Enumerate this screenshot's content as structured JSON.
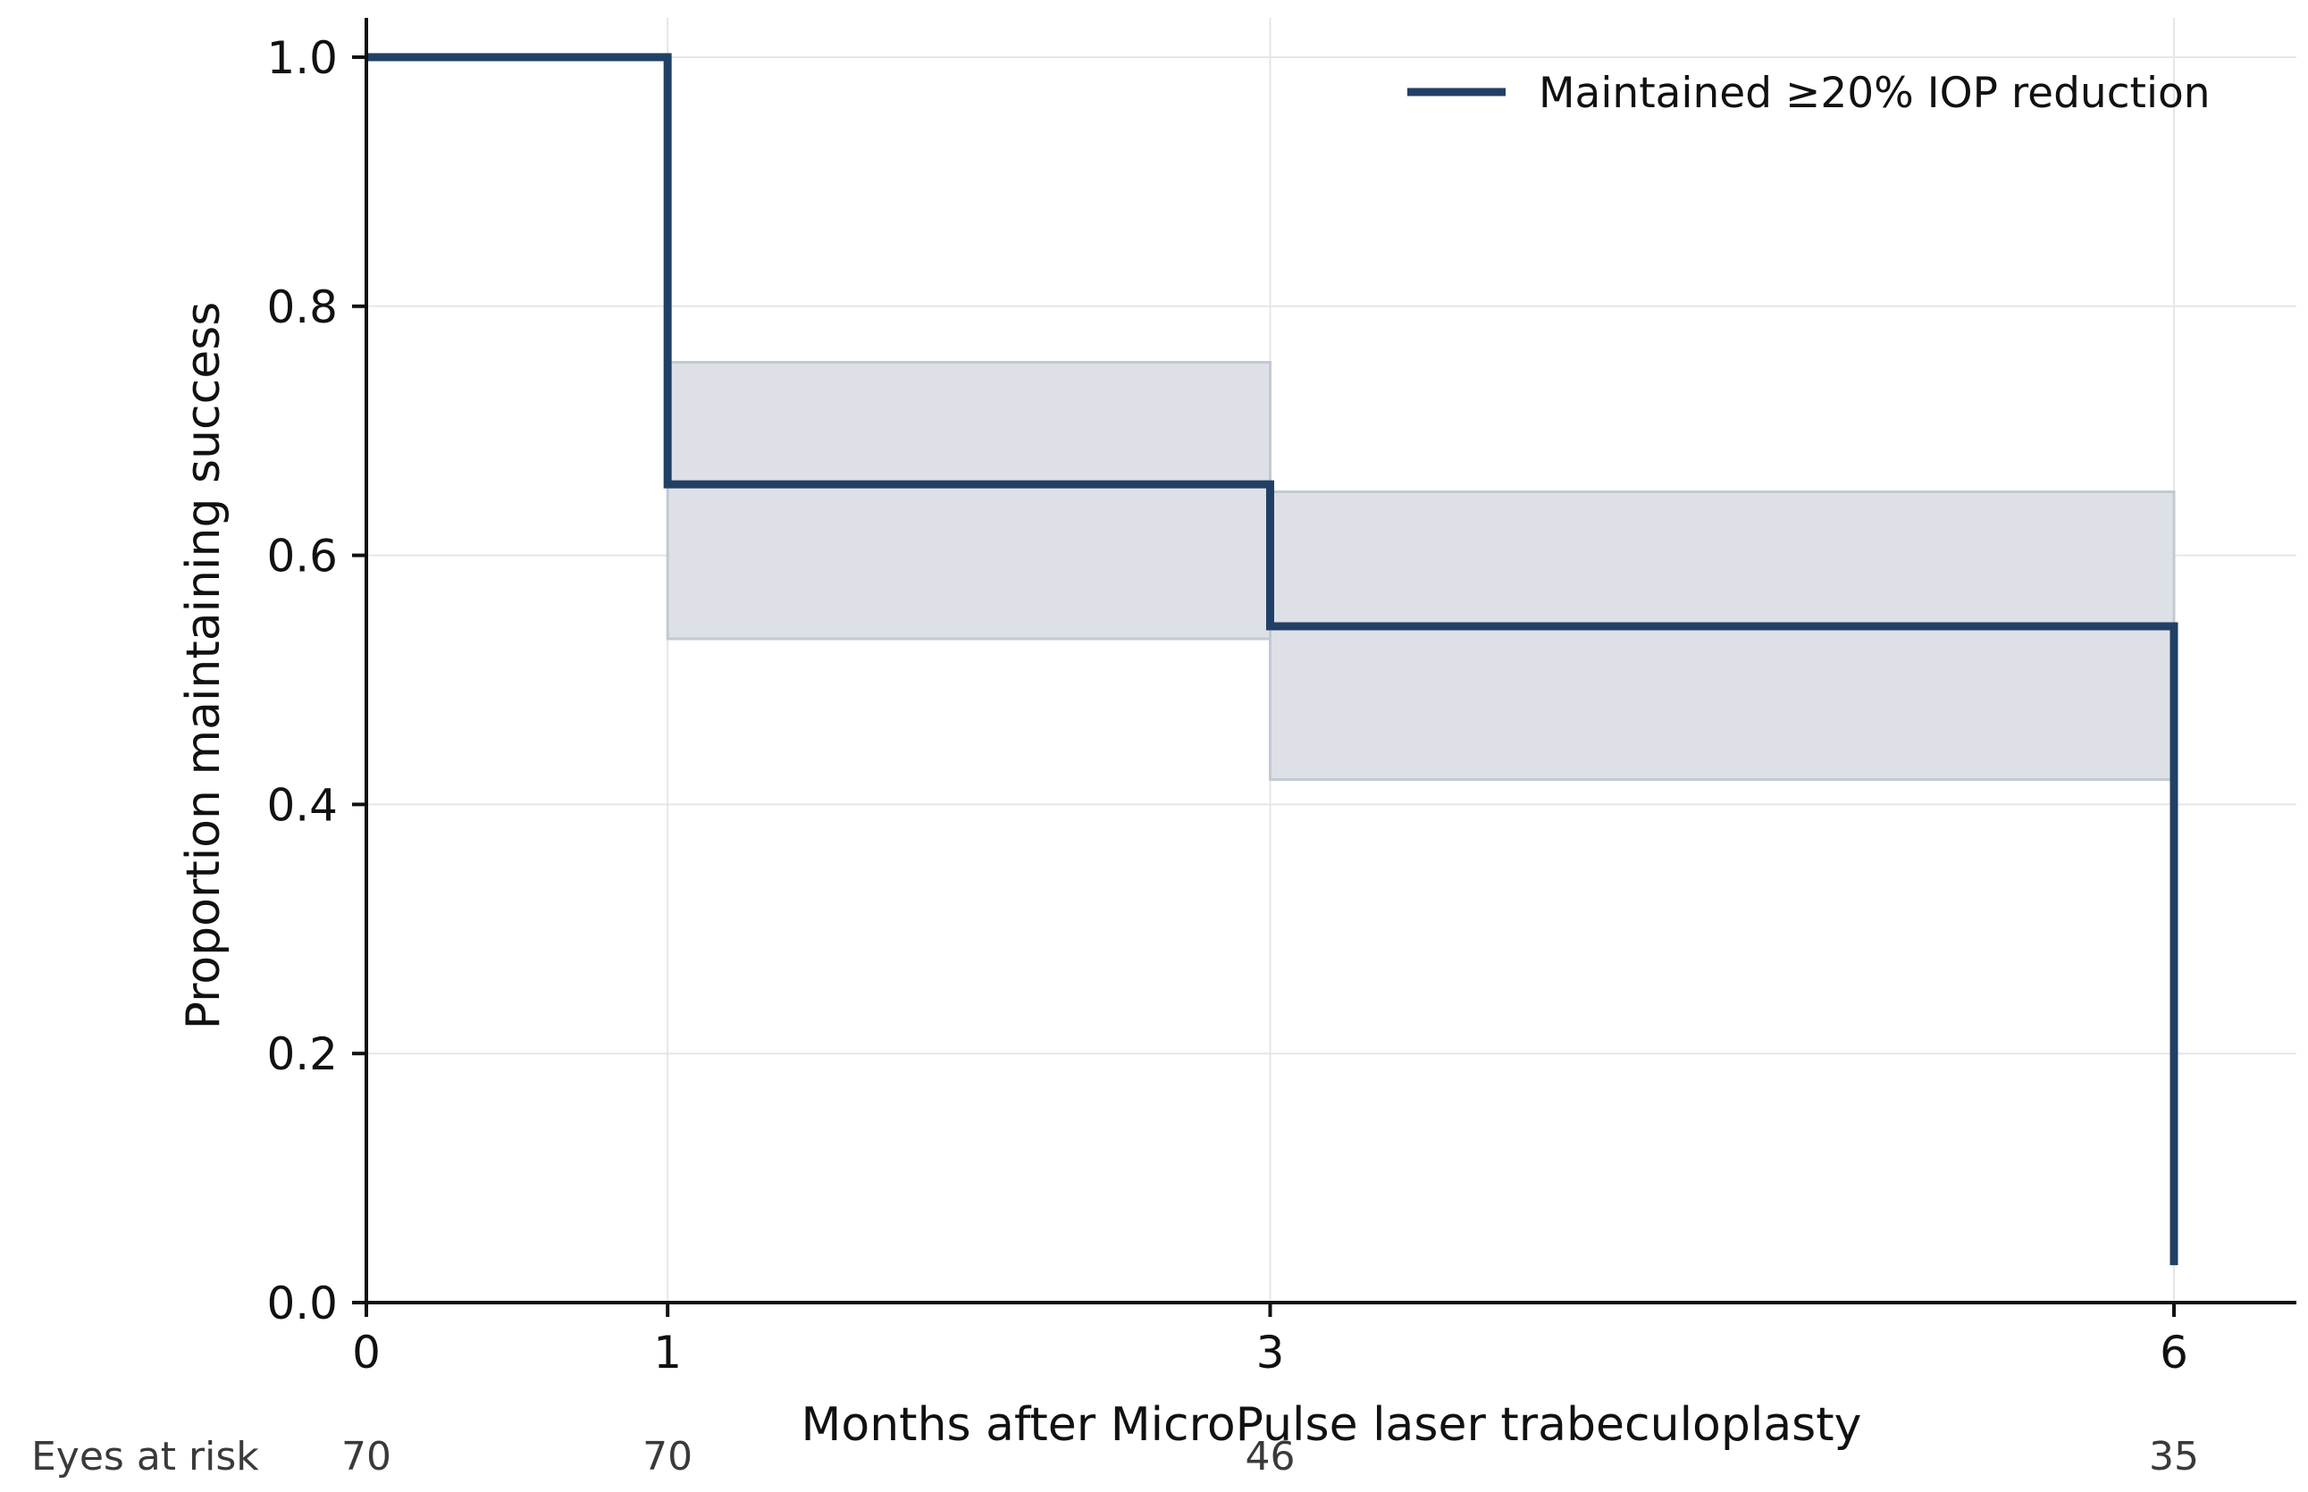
{
  "colors": {
    "line": "#223f66",
    "ci_fill": "#dde1e7",
    "ci_edge": "#c3c9d2",
    "grid": "#e6e6e6",
    "axis": "#111111"
  },
  "chart_data": {
    "type": "line",
    "step": "post",
    "xlabel": "Months after MicroPulse laser trabeculoplasty",
    "ylabel": "Proportion maintaining success",
    "xlim": [
      0,
      6.4
    ],
    "ylim": [
      0,
      1.0
    ],
    "grid": true,
    "legend_position": "top-right",
    "x_ticks": [
      0,
      1,
      3,
      6
    ],
    "x_tick_labels": [
      "0",
      "1",
      "3",
      "6"
    ],
    "y_ticks": [
      0,
      0.2,
      0.4,
      0.6,
      0.8,
      1.0
    ],
    "y_tick_labels": [
      "0.0",
      "0.2",
      "0.4",
      "0.6",
      "0.8",
      "1.0"
    ],
    "series": [
      {
        "name": "Maintained ≥20% IOP reduction",
        "x": [
          0,
          1,
          3,
          6
        ],
        "y": [
          1.0,
          0.657,
          0.543,
          0.03
        ]
      }
    ],
    "confidence_band": [
      {
        "x_start": 1,
        "x_end": 3,
        "lower": 0.533,
        "upper": 0.755
      },
      {
        "x_start": 3,
        "x_end": 6,
        "lower": 0.42,
        "upper": 0.651
      }
    ],
    "risk_table": {
      "label": "Eyes at risk",
      "x": [
        0,
        1,
        3,
        6
      ],
      "values": [
        "70",
        "70",
        "46",
        "35"
      ]
    }
  }
}
